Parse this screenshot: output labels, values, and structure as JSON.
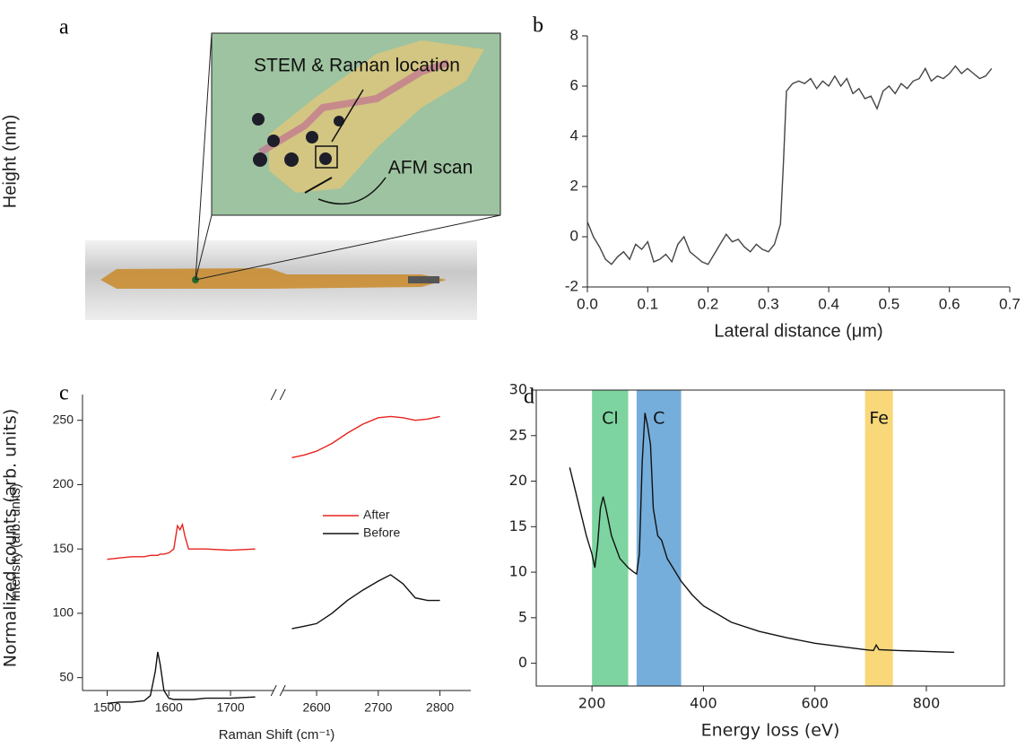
{
  "figure_a": {
    "panel_label": "a",
    "annotations": [
      "STEM & Raman location",
      "AFM scan"
    ]
  },
  "chart_data": [
    {
      "type": "line",
      "panel_label": "b",
      "xlabel": "Lateral distance (μm)",
      "ylabel": "Height (nm)",
      "xlim": [
        0,
        0.7
      ],
      "xticks": [
        {
          "value": 0,
          "label": "0.0"
        },
        0.1,
        0.2,
        0.3,
        0.4,
        0.5,
        0.6,
        0.7
      ],
      "ylim": [
        -2,
        8
      ],
      "yticks": [
        -2,
        0,
        2,
        4,
        6,
        8
      ],
      "x": [
        0,
        0.01,
        0.02,
        0.03,
        0.04,
        0.05,
        0.06,
        0.07,
        0.08,
        0.09,
        0.1,
        0.11,
        0.12,
        0.13,
        0.14,
        0.15,
        0.16,
        0.17,
        0.18,
        0.19,
        0.2,
        0.21,
        0.22,
        0.23,
        0.24,
        0.25,
        0.26,
        0.27,
        0.28,
        0.29,
        0.3,
        0.31,
        0.32,
        0.325,
        0.33,
        0.34,
        0.35,
        0.36,
        0.37,
        0.38,
        0.39,
        0.4,
        0.41,
        0.42,
        0.43,
        0.44,
        0.45,
        0.46,
        0.47,
        0.48,
        0.49,
        0.5,
        0.51,
        0.52,
        0.53,
        0.54,
        0.55,
        0.56,
        0.57,
        0.58,
        0.59,
        0.6,
        0.61,
        0.62,
        0.63,
        0.64,
        0.65,
        0.66,
        0.67
      ],
      "series": [
        {
          "color": "#444444",
          "values": [
            0.6,
            0,
            -0.4,
            -0.9,
            -1.1,
            -0.8,
            -0.6,
            -0.9,
            -0.3,
            -0.5,
            -0.2,
            -1.0,
            -0.9,
            -0.7,
            -1.0,
            -0.3,
            0.0,
            -0.6,
            -0.8,
            -1.0,
            -1.1,
            -0.7,
            -0.3,
            0.1,
            -0.2,
            -0.1,
            -0.4,
            -0.6,
            -0.3,
            -0.5,
            -0.6,
            -0.3,
            0.5,
            3,
            5.8,
            6.1,
            6.2,
            6.1,
            6.3,
            5.9,
            6.2,
            6.0,
            6.4,
            6.0,
            6.3,
            5.7,
            5.9,
            5.5,
            5.6,
            5.1,
            5.8,
            6.0,
            5.7,
            6.1,
            5.9,
            6.2,
            6.3,
            6.7,
            6.2,
            6.4,
            6.3,
            6.5,
            6.8,
            6.5,
            6.7,
            6.5,
            6.3,
            6.4,
            6.7
          ]
        }
      ]
    },
    {
      "type": "line",
      "panel_label": "c",
      "xlabel": "Raman Shift (cm⁻¹)",
      "ylabel": "Intensity (arb. units)",
      "xlim": [
        1460,
        2850
      ],
      "xbreak": [
        1770,
        2545
      ],
      "xticks": [
        1500,
        1600,
        1700,
        2600,
        2700,
        2800
      ],
      "ylim": [
        40,
        270
      ],
      "yticks": [
        50,
        100,
        150,
        200,
        250
      ],
      "legend": "right",
      "x": [
        1500,
        1520,
        1540,
        1560,
        1570,
        1578,
        1582,
        1586,
        1592,
        1600,
        1608,
        1614,
        1618,
        1622,
        1626,
        1632,
        1640,
        1660,
        1700,
        1740,
        2560,
        2580,
        2600,
        2625,
        2650,
        2675,
        2700,
        2720,
        2740,
        2760,
        2780,
        2800
      ],
      "series": [
        {
          "name": "After",
          "color": "#e8231f",
          "values": [
            142,
            143,
            144,
            144,
            145,
            145,
            145,
            146,
            146,
            147,
            150,
            168,
            165,
            169,
            160,
            150,
            150,
            150,
            149,
            150,
            221,
            223,
            226,
            232,
            240,
            247,
            252,
            253,
            252,
            250,
            251,
            253
          ]
        },
        {
          "name": "Before",
          "color": "#111111",
          "values": [
            30,
            31,
            31,
            32,
            36,
            55,
            70,
            60,
            40,
            34,
            33,
            33,
            33,
            33,
            33,
            33,
            33,
            34,
            34,
            35,
            88,
            90,
            92,
            100,
            110,
            118,
            125,
            130,
            123,
            112,
            110,
            110
          ]
        }
      ]
    },
    {
      "type": "line",
      "panel_label": "d",
      "xlabel": "Energy loss (eV)",
      "ylabel": "Normalized counts (arb. units)",
      "xlim": [
        100,
        940
      ],
      "xticks": [
        200,
        400,
        600,
        800
      ],
      "ylim": [
        -2.5,
        30
      ],
      "yticks": [
        0,
        5,
        10,
        15,
        20,
        25,
        30
      ],
      "bands": [
        {
          "name": "Cl",
          "range": [
            200,
            265
          ],
          "color": "#7dd4a0"
        },
        {
          "name": "C",
          "range": [
            280,
            360
          ],
          "color": "#76aedb"
        },
        {
          "name": "Fe",
          "range": [
            690,
            740
          ],
          "color": "#f9d87a"
        }
      ],
      "x": [
        160,
        170,
        180,
        190,
        200,
        205,
        210,
        215,
        220,
        225,
        235,
        250,
        265,
        275,
        280,
        285,
        290,
        295,
        300,
        305,
        310,
        318,
        325,
        335,
        345,
        360,
        380,
        400,
        450,
        500,
        550,
        600,
        650,
        690,
        705,
        710,
        715,
        750,
        800,
        850
      ],
      "series": [
        {
          "color": "#111111",
          "values": [
            21.5,
            19,
            16.5,
            14,
            12,
            10.5,
            13,
            17,
            18.3,
            17,
            14,
            11.5,
            10.5,
            10,
            9.8,
            12,
            22,
            27.5,
            26,
            24,
            17,
            14,
            13.5,
            11.5,
            10.5,
            9,
            7.5,
            6.3,
            4.5,
            3.5,
            2.8,
            2.2,
            1.8,
            1.5,
            1.4,
            2,
            1.5,
            1.4,
            1.3,
            1.2
          ]
        }
      ]
    }
  ]
}
